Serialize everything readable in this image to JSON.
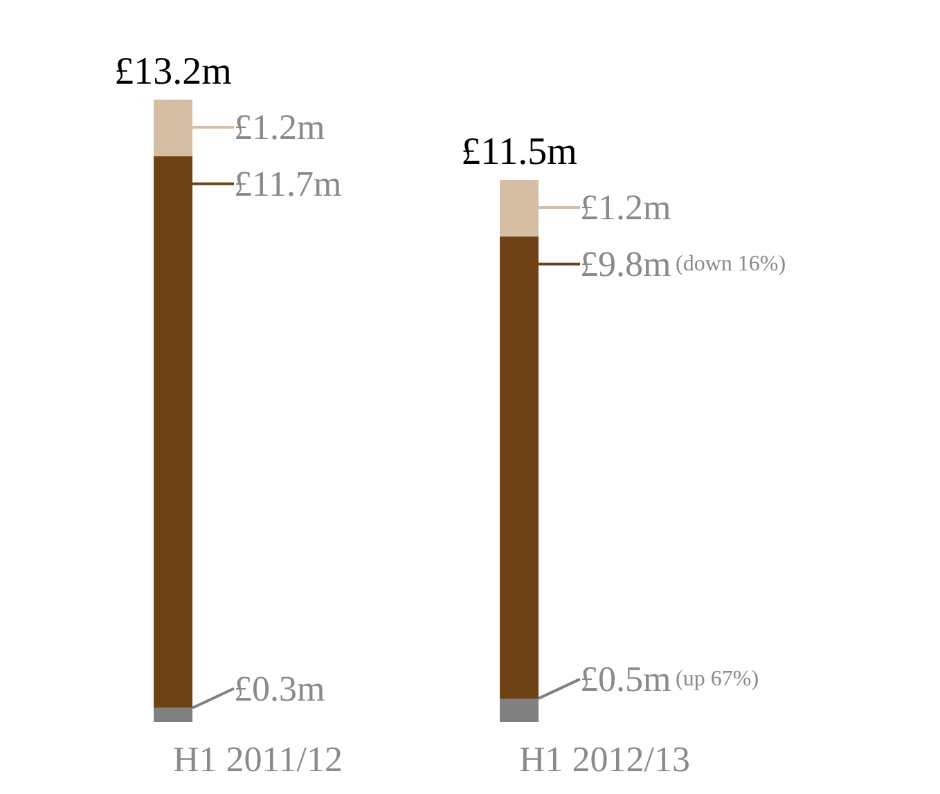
{
  "chart_data": {
    "type": "bar",
    "stacked": true,
    "categories": [
      "H1 2011/12",
      "H1 2012/13"
    ],
    "series": [
      {
        "color": "#808080",
        "values": [
          0.3,
          0.5
        ],
        "value_labels": [
          "£0.3m",
          "£0.5m"
        ]
      },
      {
        "color": "#6f4215",
        "values": [
          11.7,
          9.8
        ],
        "value_labels": [
          "£11.7m",
          "£9.8m"
        ]
      },
      {
        "color": "#d4bea4",
        "values": [
          1.2,
          1.2
        ],
        "value_labels": [
          "£1.2m",
          "£1.2m"
        ]
      }
    ],
    "totals": [
      "£13.2m",
      "£11.5m"
    ],
    "annotations": [
      "(down 16%)",
      "(up 67%)"
    ]
  }
}
